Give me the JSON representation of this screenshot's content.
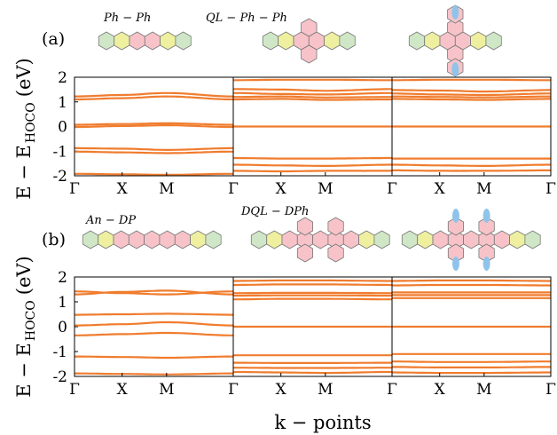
{
  "figure": {
    "xlabel": "k − points",
    "ylabel_main": "E − E",
    "ylabel_sub": "HOCO",
    "ylabel_unit": "(eV)"
  },
  "colors": {
    "band": "#f07c2e",
    "band_alt": "#c9a23a",
    "frame": "#000000",
    "ring_green": "#cfe7c6",
    "ring_pink": "#f7c3c9",
    "ring_yellow": "#eef0a0",
    "blue_group": "#8fc4ea"
  },
  "chart_data": [
    {
      "type": "line",
      "panel_label": "(a)",
      "yticks": [
        "2",
        "1",
        "0",
        "-1",
        "-2"
      ],
      "ylim": [
        -2,
        2
      ],
      "xticks": [
        "Γ",
        "X",
        "M",
        "Γ"
      ],
      "subplots": [
        {
          "molecule_label": "Ph − Ph",
          "bands": [
            [
              1.22,
              1.28,
              1.36,
              1.22
            ],
            [
              1.1,
              1.15,
              1.22,
              1.1
            ],
            [
              0.07,
              0.1,
              0.13,
              0.07
            ],
            [
              -0.02,
              0.02,
              0.05,
              -0.02
            ],
            [
              -0.88,
              -0.9,
              -0.95,
              -0.88
            ],
            [
              -1.02,
              -1.05,
              -1.08,
              -1.02
            ],
            [
              -1.92,
              -1.94,
              -1.96,
              -1.92
            ]
          ]
        },
        {
          "molecule_label": "QL − Ph − Ph",
          "bands": [
            [
              1.88,
              1.9,
              1.9,
              1.88
            ],
            [
              1.52,
              1.5,
              1.45,
              1.52
            ],
            [
              1.36,
              1.32,
              1.3,
              1.36
            ],
            [
              1.2,
              1.22,
              1.18,
              1.2
            ],
            [
              1.1,
              1.12,
              1.08,
              1.1
            ],
            [
              0.0,
              0.0,
              0.0,
              0.0
            ],
            [
              -1.28,
              -1.3,
              -1.3,
              -1.28
            ],
            [
              -1.55,
              -1.58,
              -1.6,
              -1.55
            ],
            [
              -1.8,
              -1.82,
              -1.8,
              -1.8
            ]
          ]
        },
        {
          "molecule_label": "",
          "bands": [
            [
              1.88,
              1.9,
              1.9,
              1.88
            ],
            [
              1.48,
              1.46,
              1.42,
              1.48
            ],
            [
              1.34,
              1.3,
              1.28,
              1.34
            ],
            [
              1.22,
              1.2,
              1.18,
              1.22
            ],
            [
              1.12,
              1.1,
              1.08,
              1.12
            ],
            [
              0.0,
              0.0,
              0.0,
              0.0
            ],
            [
              -1.3,
              -1.3,
              -1.3,
              -1.3
            ],
            [
              -1.55,
              -1.58,
              -1.6,
              -1.55
            ],
            [
              -1.78,
              -1.8,
              -1.8,
              -1.78
            ]
          ]
        }
      ]
    },
    {
      "type": "line",
      "panel_label": "(b)",
      "yticks": [
        "2",
        "1",
        "0",
        "-1",
        "-2"
      ],
      "ylim": [
        -2,
        2
      ],
      "xticks": [
        "Γ",
        "X",
        "M",
        "Γ"
      ],
      "subplots": [
        {
          "molecule_label": "An − DP",
          "bands": [
            [
              1.42,
              1.35,
              1.3,
              1.42
            ],
            [
              1.3,
              1.4,
              1.45,
              1.3
            ],
            [
              0.48,
              0.5,
              0.52,
              0.48
            ],
            [
              0.05,
              0.1,
              0.18,
              0.05
            ],
            [
              -0.35,
              -0.3,
              -0.25,
              -0.35
            ],
            [
              -1.2,
              -1.22,
              -1.25,
              -1.2
            ],
            [
              -1.88,
              -1.9,
              -1.92,
              -1.88
            ]
          ]
        },
        {
          "molecule_label": "DQL − DPh",
          "bands": [
            [
              1.84,
              1.86,
              1.86,
              1.84
            ],
            [
              1.68,
              1.7,
              1.7,
              1.68
            ],
            [
              1.35,
              1.36,
              1.36,
              1.35
            ],
            [
              1.25,
              1.26,
              1.26,
              1.25
            ],
            [
              1.1,
              1.12,
              1.12,
              1.1
            ],
            [
              0.0,
              0.0,
              0.0,
              0.0
            ],
            [
              -1.15,
              -1.15,
              -1.15,
              -1.15
            ],
            [
              -1.45,
              -1.46,
              -1.46,
              -1.45
            ],
            [
              -1.65,
              -1.66,
              -1.66,
              -1.65
            ],
            [
              -1.82,
              -1.84,
              -1.86,
              -1.82
            ]
          ]
        },
        {
          "molecule_label": "",
          "bands": [
            [
              1.84,
              1.86,
              1.86,
              1.84
            ],
            [
              1.66,
              1.68,
              1.68,
              1.66
            ],
            [
              1.38,
              1.38,
              1.38,
              1.38
            ],
            [
              1.27,
              1.27,
              1.27,
              1.27
            ],
            [
              1.15,
              1.15,
              1.15,
              1.15
            ],
            [
              0.0,
              0.0,
              0.0,
              0.0
            ],
            [
              -1.1,
              -1.1,
              -1.1,
              -1.1
            ],
            [
              -1.4,
              -1.42,
              -1.42,
              -1.4
            ],
            [
              -1.62,
              -1.64,
              -1.64,
              -1.62
            ],
            [
              -1.84,
              -1.86,
              -1.86,
              -1.84
            ]
          ]
        }
      ]
    }
  ]
}
